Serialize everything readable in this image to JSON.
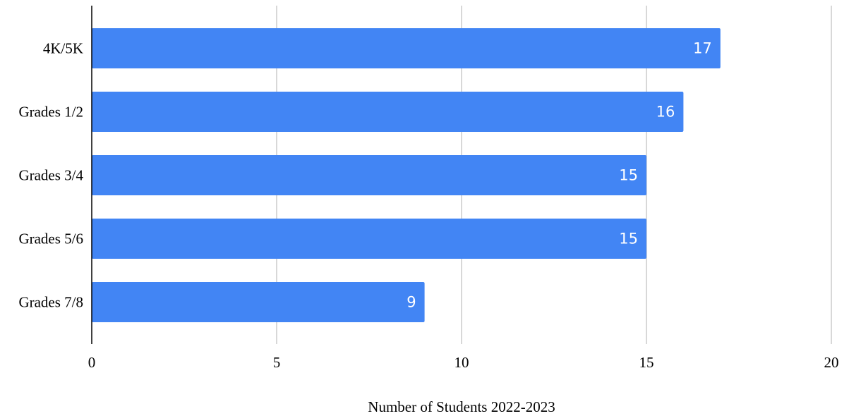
{
  "chart_data": {
    "type": "bar",
    "orientation": "horizontal",
    "categories": [
      "4K/5K",
      "Grades 1/2",
      "Grades 3/4",
      "Grades 5/6",
      "Grades 7/8"
    ],
    "values": [
      17,
      16,
      15,
      15,
      9
    ],
    "title": "",
    "xlabel": "Number of Students 2022-2023",
    "ylabel": "",
    "xlim": [
      0,
      20
    ],
    "xticks": [
      0,
      5,
      10,
      15,
      20
    ],
    "grid": "vertical",
    "legend": "none",
    "data_labels": "inside-end",
    "bar_color": "#4285F4",
    "grid_color": "#cccccc",
    "axis_color": "#000000",
    "data_label_color": "#ffffff"
  }
}
